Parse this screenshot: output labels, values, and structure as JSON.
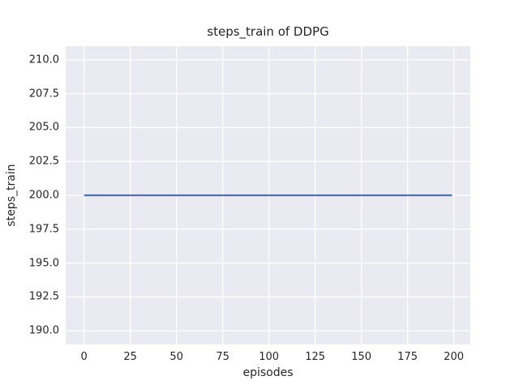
{
  "figure": {
    "title": "steps_train of DDPG",
    "xlabel": "episodes",
    "ylabel": "steps_train"
  },
  "chart_data": {
    "type": "line",
    "title": "steps_train of DDPG",
    "xlabel": "episodes",
    "ylabel": "steps_train",
    "xlim": [
      -9.95,
      208.95
    ],
    "ylim": [
      189.0,
      211.0
    ],
    "xticks": [
      0,
      25,
      50,
      75,
      100,
      125,
      150,
      175,
      200
    ],
    "xtick_labels": [
      "0",
      "25",
      "50",
      "75",
      "100",
      "125",
      "150",
      "175",
      "200"
    ],
    "yticks": [
      190.0,
      192.5,
      195.0,
      197.5,
      200.0,
      202.5,
      205.0,
      207.5,
      210.0
    ],
    "ytick_labels": [
      "190.0",
      "192.5",
      "195.0",
      "197.5",
      "200.0",
      "202.5",
      "205.0",
      "207.5",
      "210.0"
    ],
    "grid": true,
    "legend": false,
    "style": {
      "figure_background": "#ffffff",
      "axes_background": "#eaeaf2",
      "grid_color": "#ffffff",
      "text_color": "#262626",
      "line_width": 2.2,
      "grid_width": 1.3
    },
    "series": [
      {
        "name": "steps_train",
        "color": "#4c72b0",
        "x": [
          0,
          199
        ],
        "y": [
          200,
          200
        ]
      }
    ]
  }
}
